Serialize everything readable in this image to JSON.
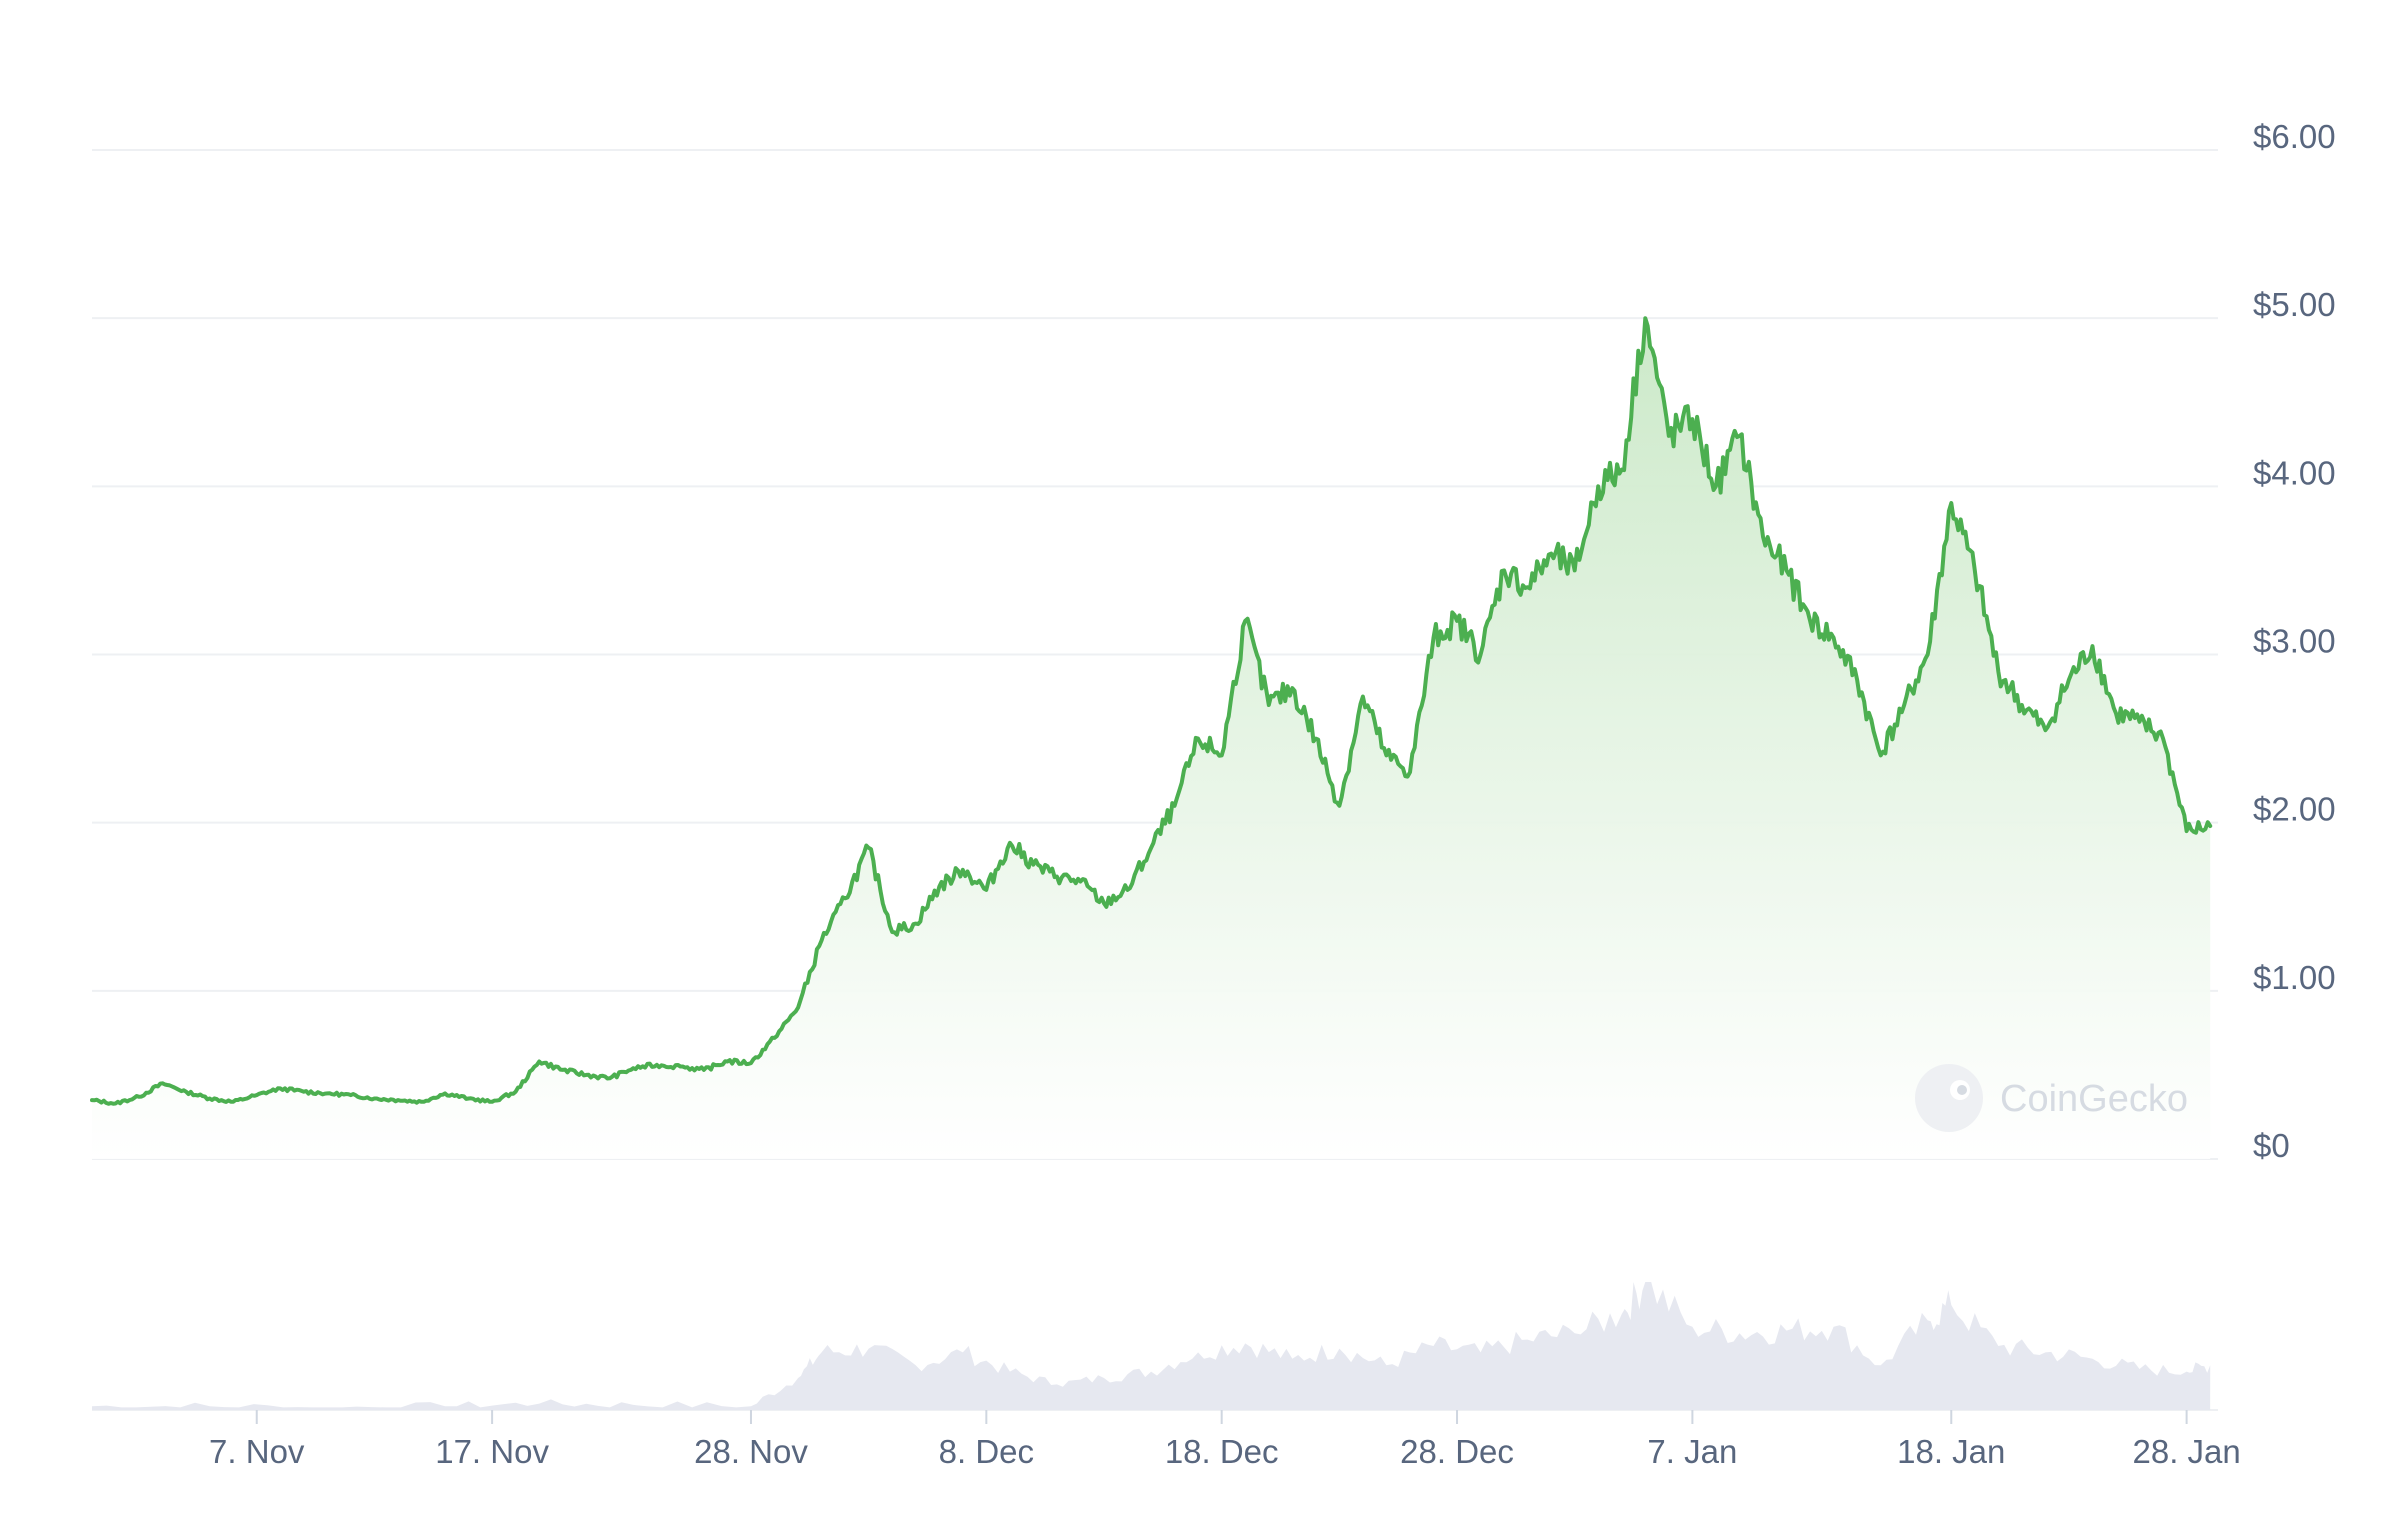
{
  "watermark": {
    "text": "CoinGecko"
  },
  "colors": {
    "line": "#4caf50",
    "area_top": "#c9e8c6",
    "grid": "#eef0f3",
    "volume": "#e6e8f0",
    "tick_text": "#58667e"
  },
  "chart_data": {
    "type": "area",
    "title": "",
    "xlabel": "",
    "ylabel": "",
    "ylim": [
      0,
      6
    ],
    "grid": true,
    "legend": "none",
    "y_ticks": [
      {
        "value": 6,
        "label": "$6.00"
      },
      {
        "value": 5,
        "label": "$5.00"
      },
      {
        "value": 4,
        "label": "$4.00"
      },
      {
        "value": 3,
        "label": "$3.00"
      },
      {
        "value": 2,
        "label": "$2.00"
      },
      {
        "value": 1,
        "label": "$1.00"
      },
      {
        "value": 0,
        "label": "$0"
      }
    ],
    "x_ticks": [
      {
        "date": "2023-11-07",
        "label": "7. Nov"
      },
      {
        "date": "2023-11-17",
        "label": "17. Nov"
      },
      {
        "date": "2023-11-28",
        "label": "28. Nov"
      },
      {
        "date": "2023-12-08",
        "label": "8. Dec"
      },
      {
        "date": "2023-12-18",
        "label": "18. Dec"
      },
      {
        "date": "2023-12-28",
        "label": "28. Dec"
      },
      {
        "date": "2024-01-07",
        "label": "7. Jan"
      },
      {
        "date": "2024-01-18",
        "label": "18. Jan"
      },
      {
        "date": "2024-01-28",
        "label": "28. Jan"
      }
    ],
    "price_series": [
      [
        "2023-10-31",
        0.35
      ],
      [
        "2023-11-01",
        0.33
      ],
      [
        "2023-11-02",
        0.37
      ],
      [
        "2023-11-03",
        0.45
      ],
      [
        "2023-11-04",
        0.4
      ],
      [
        "2023-11-05",
        0.36
      ],
      [
        "2023-11-06",
        0.34
      ],
      [
        "2023-11-07",
        0.38
      ],
      [
        "2023-11-08",
        0.42
      ],
      [
        "2023-11-09",
        0.4
      ],
      [
        "2023-11-10",
        0.39
      ],
      [
        "2023-11-11",
        0.38
      ],
      [
        "2023-11-12",
        0.36
      ],
      [
        "2023-11-13",
        0.35
      ],
      [
        "2023-11-14",
        0.34
      ],
      [
        "2023-11-15",
        0.39
      ],
      [
        "2023-11-16",
        0.36
      ],
      [
        "2023-11-17",
        0.34
      ],
      [
        "2023-11-18",
        0.4
      ],
      [
        "2023-11-19",
        0.58
      ],
      [
        "2023-11-20",
        0.53
      ],
      [
        "2023-11-21",
        0.5
      ],
      [
        "2023-11-22",
        0.48
      ],
      [
        "2023-11-23",
        0.54
      ],
      [
        "2023-11-24",
        0.56
      ],
      [
        "2023-11-25",
        0.55
      ],
      [
        "2023-11-26",
        0.53
      ],
      [
        "2023-11-27",
        0.58
      ],
      [
        "2023-11-28",
        0.57
      ],
      [
        "2023-11-29",
        0.72
      ],
      [
        "2023-11-30",
        0.9
      ],
      [
        "2023-12-01",
        1.3
      ],
      [
        "2023-12-02",
        1.55
      ],
      [
        "2023-12-03",
        1.85
      ],
      [
        "2023-12-04",
        1.35
      ],
      [
        "2023-12-05",
        1.4
      ],
      [
        "2023-12-06",
        1.62
      ],
      [
        "2023-12-07",
        1.72
      ],
      [
        "2023-12-08",
        1.6
      ],
      [
        "2023-12-09",
        1.88
      ],
      [
        "2023-12-10",
        1.75
      ],
      [
        "2023-12-11",
        1.68
      ],
      [
        "2023-12-12",
        1.65
      ],
      [
        "2023-12-13",
        1.52
      ],
      [
        "2023-12-14",
        1.6
      ],
      [
        "2023-12-15",
        1.85
      ],
      [
        "2023-12-16",
        2.1
      ],
      [
        "2023-12-17",
        2.5
      ],
      [
        "2023-12-18",
        2.4
      ],
      [
        "2023-12-19",
        3.2
      ],
      [
        "2023-12-20",
        2.7
      ],
      [
        "2023-12-21",
        2.8
      ],
      [
        "2023-12-22",
        2.5
      ],
      [
        "2023-12-23",
        2.1
      ],
      [
        "2023-12-24",
        2.75
      ],
      [
        "2023-12-25",
        2.4
      ],
      [
        "2023-12-26",
        2.3
      ],
      [
        "2023-12-27",
        3.1
      ],
      [
        "2023-12-28",
        3.2
      ],
      [
        "2023-12-29",
        3.0
      ],
      [
        "2023-12-30",
        3.5
      ],
      [
        "2023-12-31",
        3.4
      ],
      [
        "2024-01-01",
        3.6
      ],
      [
        "2024-01-02",
        3.5
      ],
      [
        "2024-01-03",
        4.0
      ],
      [
        "2024-01-04",
        4.1
      ],
      [
        "2024-01-05",
        5.0
      ],
      [
        "2024-01-06",
        4.3
      ],
      [
        "2024-01-07",
        4.4
      ],
      [
        "2024-01-08",
        4.0
      ],
      [
        "2024-01-09",
        4.3
      ],
      [
        "2024-01-10",
        3.7
      ],
      [
        "2024-01-11",
        3.5
      ],
      [
        "2024-01-12",
        3.2
      ],
      [
        "2024-01-13",
        3.1
      ],
      [
        "2024-01-14",
        2.85
      ],
      [
        "2024-01-15",
        2.4
      ],
      [
        "2024-01-16",
        2.7
      ],
      [
        "2024-01-17",
        3.0
      ],
      [
        "2024-01-18",
        3.9
      ],
      [
        "2024-01-19",
        3.5
      ],
      [
        "2024-01-20",
        2.9
      ],
      [
        "2024-01-21",
        2.7
      ],
      [
        "2024-01-22",
        2.55
      ],
      [
        "2024-01-23",
        2.85
      ],
      [
        "2024-01-24",
        3.05
      ],
      [
        "2024-01-25",
        2.65
      ],
      [
        "2024-01-26",
        2.6
      ],
      [
        "2024-01-27",
        2.5
      ],
      [
        "2024-01-28",
        1.95
      ],
      [
        "2024-01-29",
        1.98
      ]
    ],
    "volume_series": [
      [
        "2023-10-31",
        0.03
      ],
      [
        "2023-11-05",
        0.03
      ],
      [
        "2023-11-10",
        0.02
      ],
      [
        "2023-11-15",
        0.03
      ],
      [
        "2023-11-19",
        0.05
      ],
      [
        "2023-11-23",
        0.04
      ],
      [
        "2023-11-28",
        0.03
      ],
      [
        "2023-11-30",
        0.25
      ],
      [
        "2023-12-01",
        0.45
      ],
      [
        "2023-12-03",
        0.48
      ],
      [
        "2023-12-05",
        0.35
      ],
      [
        "2023-12-07",
        0.45
      ],
      [
        "2023-12-09",
        0.3
      ],
      [
        "2023-12-11",
        0.2
      ],
      [
        "2023-12-13",
        0.25
      ],
      [
        "2023-12-15",
        0.3
      ],
      [
        "2023-12-17",
        0.45
      ],
      [
        "2023-12-19",
        0.52
      ],
      [
        "2023-12-21",
        0.4
      ],
      [
        "2023-12-23",
        0.48
      ],
      [
        "2023-12-25",
        0.35
      ],
      [
        "2023-12-27",
        0.5
      ],
      [
        "2023-12-29",
        0.45
      ],
      [
        "2023-12-31",
        0.55
      ],
      [
        "2024-01-02",
        0.6
      ],
      [
        "2024-01-04",
        0.75
      ],
      [
        "2024-01-05",
        1.0
      ],
      [
        "2024-01-07",
        0.65
      ],
      [
        "2024-01-09",
        0.6
      ],
      [
        "2024-01-11",
        0.62
      ],
      [
        "2024-01-13",
        0.65
      ],
      [
        "2024-01-15",
        0.35
      ],
      [
        "2024-01-17",
        0.7
      ],
      [
        "2024-01-18",
        0.82
      ],
      [
        "2024-01-20",
        0.5
      ],
      [
        "2024-01-22",
        0.45
      ],
      [
        "2024-01-24",
        0.4
      ],
      [
        "2024-01-26",
        0.32
      ],
      [
        "2024-01-28",
        0.3
      ],
      [
        "2024-01-29",
        0.35
      ]
    ]
  }
}
